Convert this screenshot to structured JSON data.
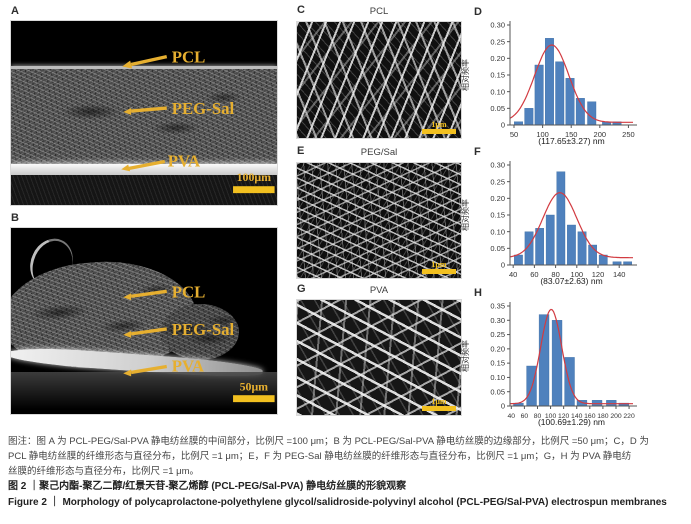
{
  "colors": {
    "accent_yellow": "#E6AF30",
    "scalebar_yellow": "#F2C020",
    "bar_blue": "#4F81BD",
    "curve_red": "#D23B41"
  },
  "panel_a": {
    "letter": "A",
    "labels": [
      "PCL",
      "PEG-Sal",
      "PVA"
    ],
    "scale": "100μm"
  },
  "panel_b": {
    "letter": "B",
    "labels": [
      "PCL",
      "PEG-Sal",
      "PVA"
    ],
    "scale": "50μm"
  },
  "panel_c": {
    "letter": "C",
    "title": "PCL",
    "scale": "1μm"
  },
  "panel_e": {
    "letter": "E",
    "title": "PEG/Sal",
    "scale": "1μm"
  },
  "panel_g": {
    "letter": "G",
    "title": "PVA",
    "scale": "1μm"
  },
  "chart_data": [
    {
      "panel": "D",
      "type": "bar",
      "title": "",
      "ylabel": "相对频率",
      "xlabel": "(117.65±3.27) nm",
      "xlim": [
        43,
        258
      ],
      "ylim": [
        0,
        0.3
      ],
      "ytick_step": 0.05,
      "xticks": [
        50,
        100,
        150,
        200,
        250
      ],
      "bin_width": 17,
      "bin_centers": [
        58,
        76,
        94,
        112,
        130,
        148,
        166,
        186,
        212,
        230
      ],
      "values": [
        0.01,
        0.05,
        0.18,
        0.26,
        0.19,
        0.14,
        0.08,
        0.07,
        0.01,
        0.01
      ],
      "fit": {
        "type": "gaussian",
        "mean": 116,
        "sigma": 30,
        "peak": 0.232,
        "offset": 0.008
      }
    },
    {
      "panel": "F",
      "type": "bar",
      "title": "",
      "ylabel": "相对频率",
      "xlabel": "(83.07±2.63) nm",
      "xlim": [
        37,
        153
      ],
      "ylim": [
        0,
        0.3
      ],
      "ytick_step": 0.05,
      "xticks": [
        40,
        60,
        80,
        100,
        120,
        140
      ],
      "bin_width": 9,
      "bin_centers": [
        45,
        55,
        65,
        75,
        85,
        95,
        105,
        115,
        125,
        138,
        148
      ],
      "values": [
        0.03,
        0.1,
        0.11,
        0.15,
        0.28,
        0.12,
        0.1,
        0.06,
        0.03,
        0.01,
        0.01
      ],
      "fit": {
        "type": "gaussian",
        "mean": 84,
        "sigma": 16,
        "peak": 0.195,
        "offset": 0.022
      }
    },
    {
      "panel": "H",
      "type": "bar",
      "title": "",
      "ylabel": "相对频率",
      "xlabel": "(100.69±1.29) nm",
      "xlim": [
        38,
        226
      ],
      "ylim": [
        0,
        0.35
      ],
      "ytick_step": 0.05,
      "xticks": [
        40,
        60,
        80,
        100,
        120,
        140,
        160,
        180,
        200,
        220
      ],
      "bin_width": 17,
      "bin_centers": [
        51,
        71,
        90,
        110,
        129,
        148,
        171,
        193,
        212
      ],
      "values": [
        0.01,
        0.14,
        0.32,
        0.3,
        0.17,
        0.02,
        0.02,
        0.02,
        0.01
      ],
      "fit": {
        "type": "gaussian",
        "mean": 101,
        "sigma": 16,
        "peak": 0.33,
        "offset": 0.008
      }
    }
  ],
  "caption": {
    "note_lines": [
      "图注：图 A 为 PCL-PEG/Sal-PVA 静电纺丝膜的中间部分，比例尺 =100 μm；B 为 PCL-PEG/Sal-PVA 静电纺丝膜的边缘部分，比例尺 =50 μm；C，D 为",
      "PCL 静电纺丝膜的纤维形态与直径分布，比例尺 =1 μm；E，F 为 PEG-Sal 静电纺丝膜的纤维形态与直径分布，比例尺 =1 μm；G，H 为 PVA 静电纺",
      "丝膜的纤维形态与直径分布，比例尺 =1 μm。"
    ],
    "title_zh": "图 2 ｜聚己内酯-聚乙二醇/红景天苷-聚乙烯醇 (PCL-PEG/Sal-PVA) 静电纺丝膜的形貌观察",
    "title_en": "Figure 2 ｜ Morphology of polycaprolactone-polyethylene glycol/salidroside-polyvinyl alcohol (PCL-PEG/Sal-PVA) electrospun membranes"
  }
}
